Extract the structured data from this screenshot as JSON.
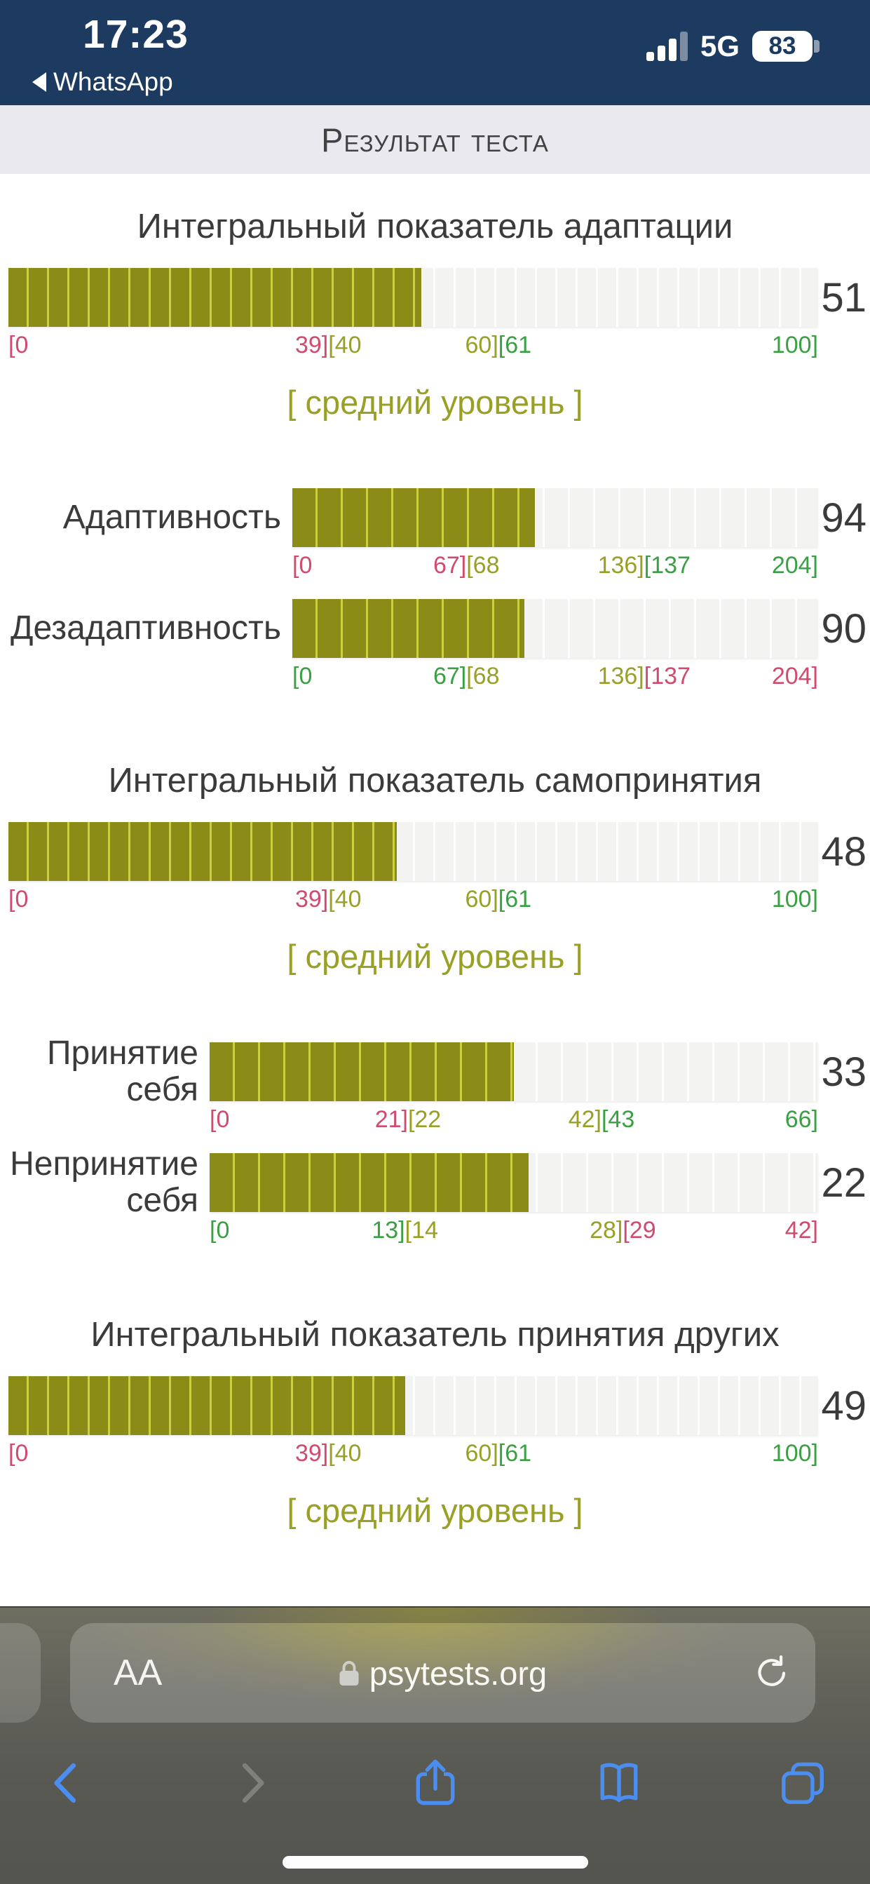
{
  "status_bar": {
    "time": "17:23",
    "back_label": "WhatsApp",
    "network": "5G",
    "battery_percent": "83"
  },
  "header": {
    "title": "Результат теста"
  },
  "browser": {
    "url": "psytests.org",
    "text_size_label": "AA"
  },
  "colors": {
    "bar_fill": "#8b8b17",
    "bar_sep": "#cbd041",
    "track": "#f3f3f1",
    "track_sep": "#ffffff",
    "scale_red": "#d14b6e",
    "scale_olive": "#98a125",
    "scale_green": "#3aa043",
    "statusbar_navy": "#1d3a60",
    "link_blue": "#4b8ef0"
  },
  "chart_data": [
    {
      "type": "bar",
      "title": "Интегральный показатель адаптации",
      "level": "[ средний уровень ]",
      "label_col": 0,
      "rows": [
        {
          "label": "",
          "value": 51,
          "max": 100,
          "seg": 29,
          "ticks": [
            {
              "p": 0,
              "a": "l",
              "parts": [
                {
                  "t": "[0",
                  "c": "r"
                }
              ]
            },
            {
              "p": 39.5,
              "a": "c",
              "parts": [
                {
                  "t": "39]",
                  "c": "r"
                },
                {
                  "t": "[40",
                  "c": "o"
                }
              ]
            },
            {
              "p": 60.5,
              "a": "c",
              "parts": [
                {
                  "t": "60]",
                  "c": "o"
                },
                {
                  "t": "[61",
                  "c": "g"
                }
              ]
            },
            {
              "p": 100,
              "a": "r",
              "parts": [
                {
                  "t": "100]",
                  "c": "g"
                }
              ]
            }
          ]
        }
      ]
    },
    {
      "type": "bar",
      "title": "",
      "level": "",
      "label_col": 405,
      "rows": [
        {
          "label": "Адаптивность",
          "value": 94,
          "max": 204,
          "seg": 36,
          "ticks": [
            {
              "p": 0,
              "a": "l",
              "parts": [
                {
                  "t": "[0",
                  "c": "r"
                }
              ]
            },
            {
              "p": 33.1,
              "a": "c",
              "parts": [
                {
                  "t": "67]",
                  "c": "r"
                },
                {
                  "t": "[68",
                  "c": "o"
                }
              ]
            },
            {
              "p": 66.9,
              "a": "c",
              "parts": [
                {
                  "t": "136]",
                  "c": "o"
                },
                {
                  "t": "[137",
                  "c": "g"
                }
              ]
            },
            {
              "p": 100,
              "a": "r",
              "parts": [
                {
                  "t": "204]",
                  "c": "g"
                }
              ]
            }
          ]
        },
        {
          "label": "Дезадаптивность",
          "value": 90,
          "max": 204,
          "seg": 36,
          "ticks": [
            {
              "p": 0,
              "a": "l",
              "parts": [
                {
                  "t": "[0",
                  "c": "g"
                }
              ]
            },
            {
              "p": 33.1,
              "a": "c",
              "parts": [
                {
                  "t": "67]",
                  "c": "g"
                },
                {
                  "t": "[68",
                  "c": "o"
                }
              ]
            },
            {
              "p": 66.9,
              "a": "c",
              "parts": [
                {
                  "t": "136]",
                  "c": "o"
                },
                {
                  "t": "[137",
                  "c": "r"
                }
              ]
            },
            {
              "p": 100,
              "a": "r",
              "parts": [
                {
                  "t": "204]",
                  "c": "r"
                }
              ]
            }
          ]
        }
      ]
    },
    {
      "type": "bar",
      "title": "Интегральный показатель самопринятия",
      "level": "[ средний уровень ]",
      "label_col": 0,
      "rows": [
        {
          "label": "",
          "value": 48,
          "max": 100,
          "seg": 29,
          "ticks": [
            {
              "p": 0,
              "a": "l",
              "parts": [
                {
                  "t": "[0",
                  "c": "r"
                }
              ]
            },
            {
              "p": 39.5,
              "a": "c",
              "parts": [
                {
                  "t": "39]",
                  "c": "r"
                },
                {
                  "t": "[40",
                  "c": "o"
                }
              ]
            },
            {
              "p": 60.5,
              "a": "c",
              "parts": [
                {
                  "t": "60]",
                  "c": "o"
                },
                {
                  "t": "[61",
                  "c": "g"
                }
              ]
            },
            {
              "p": 100,
              "a": "r",
              "parts": [
                {
                  "t": "100]",
                  "c": "g"
                }
              ]
            }
          ]
        }
      ]
    },
    {
      "type": "bar",
      "title": "",
      "level": "",
      "label_col": 287,
      "rows": [
        {
          "label": "Принятие себя",
          "value": 33,
          "max": 66,
          "seg": 36,
          "ticks": [
            {
              "p": 0,
              "a": "l",
              "parts": [
                {
                  "t": "[0",
                  "c": "r"
                }
              ]
            },
            {
              "p": 32.6,
              "a": "c",
              "parts": [
                {
                  "t": "21]",
                  "c": "r"
                },
                {
                  "t": "[22",
                  "c": "o"
                }
              ]
            },
            {
              "p": 64.4,
              "a": "c",
              "parts": [
                {
                  "t": "42]",
                  "c": "o"
                },
                {
                  "t": "[43",
                  "c": "g"
                }
              ]
            },
            {
              "p": 100,
              "a": "r",
              "parts": [
                {
                  "t": "66]",
                  "c": "g"
                }
              ]
            }
          ]
        },
        {
          "label": "Непринятие себя",
          "value": 22,
          "max": 42,
          "seg": 36,
          "ticks": [
            {
              "p": 0,
              "a": "l",
              "parts": [
                {
                  "t": "[0",
                  "c": "g"
                }
              ]
            },
            {
              "p": 32.1,
              "a": "c",
              "parts": [
                {
                  "t": "13]",
                  "c": "g"
                },
                {
                  "t": "[14",
                  "c": "o"
                }
              ]
            },
            {
              "p": 67.9,
              "a": "c",
              "parts": [
                {
                  "t": "28]",
                  "c": "o"
                },
                {
                  "t": "[29",
                  "c": "r"
                }
              ]
            },
            {
              "p": 100,
              "a": "r",
              "parts": [
                {
                  "t": "42]",
                  "c": "r"
                }
              ]
            }
          ]
        }
      ]
    },
    {
      "type": "bar",
      "title": "Интегральный показатель принятия других",
      "level": "[ средний уровень ]",
      "label_col": 0,
      "rows": [
        {
          "label": "",
          "value": 49,
          "max": 100,
          "seg": 29,
          "ticks": [
            {
              "p": 0,
              "a": "l",
              "parts": [
                {
                  "t": "[0",
                  "c": "r"
                }
              ]
            },
            {
              "p": 39.5,
              "a": "c",
              "parts": [
                {
                  "t": "39]",
                  "c": "r"
                },
                {
                  "t": "[40",
                  "c": "o"
                }
              ]
            },
            {
              "p": 60.5,
              "a": "c",
              "parts": [
                {
                  "t": "60]",
                  "c": "o"
                },
                {
                  "t": "[61",
                  "c": "g"
                }
              ]
            },
            {
              "p": 100,
              "a": "r",
              "parts": [
                {
                  "t": "100]",
                  "c": "g"
                }
              ]
            }
          ]
        }
      ]
    }
  ]
}
